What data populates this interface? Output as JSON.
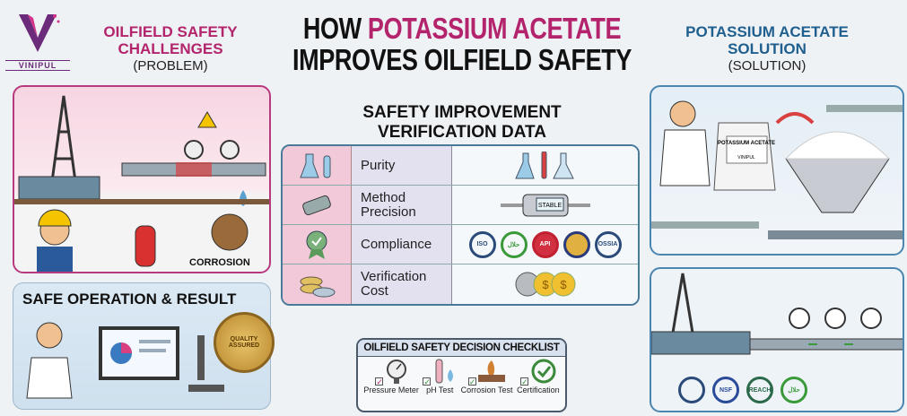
{
  "logo": {
    "brand": "VINIPUL"
  },
  "left_header": {
    "title": "OILFIELD SAFETY CHALLENGES",
    "subtitle": "(PROBLEM)"
  },
  "title": {
    "line1_a": "HOW ",
    "line1_b": "POTASSIUM ACETATE",
    "line2": "IMPROVES OILFIELD SAFETY"
  },
  "right_header": {
    "title": "POTASSIUM ACETATE SOLUTION",
    "subtitle": "(SOLUTION)"
  },
  "problem_panel": {
    "corrosion_label": "CORROSION"
  },
  "safe_panel": {
    "title": "SAFE OPERATION & RESULT",
    "seal_text": "QUALITY ASSURED"
  },
  "verification": {
    "title": "SAFETY IMPROVEMENT VERIFICATION DATA",
    "rows": [
      {
        "label": "Purity",
        "icon": "flask-icon"
      },
      {
        "label": "Method Precision",
        "icon": "meter-icon",
        "display": "STABLE"
      },
      {
        "label": "Compliance",
        "icon": "award-icon",
        "badges": [
          "ISO",
          "حلال",
          "API",
          "",
          "OSSIA"
        ]
      },
      {
        "label": "Verification Cost",
        "icon": "coins-icon"
      }
    ]
  },
  "solution_panel": {
    "bag_text": "POTASSIUM ACETATE",
    "bag_sub": "VINIPUL"
  },
  "result_panel": {
    "badges": [
      "NSF",
      "REACH",
      "حلال"
    ]
  },
  "checklist": {
    "title": "OILFIELD SAFETY DECISION CHECKLIST",
    "items": [
      "Pressure Meter",
      "pH Test",
      "Corrosion Test",
      "Certification"
    ]
  },
  "colors": {
    "magenta": "#b3246c",
    "blue": "#1f5f8f"
  }
}
